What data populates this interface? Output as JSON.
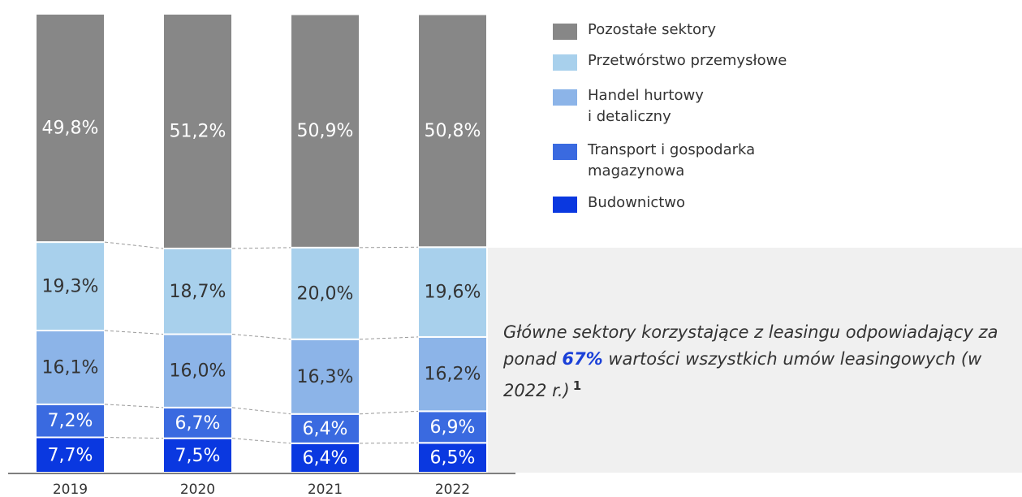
{
  "chart_data": {
    "type": "stacked_bar",
    "categories": [
      "2019",
      "2020",
      "2021",
      "2022"
    ],
    "series": [
      {
        "name": "Budownictwo",
        "color": "#0a38e0",
        "values": [
          7.7,
          7.5,
          6.4,
          6.5
        ],
        "value_labels": [
          "7,7%",
          "7,5%",
          "6,4%",
          "6,5%"
        ]
      },
      {
        "name": "Transport i gospodarka\nmagazynowa",
        "color": "#3a6ae0",
        "values": [
          7.2,
          6.7,
          6.4,
          6.9
        ],
        "value_labels": [
          "7,2%",
          "6,7%",
          "6,4%",
          "6,9%"
        ]
      },
      {
        "name": "Handel hurtowy\ni detaliczny",
        "color": "#8cb4e8",
        "values": [
          16.1,
          16.0,
          16.3,
          16.2
        ],
        "value_labels": [
          "16,1%",
          "16,0%",
          "16,3%",
          "16,2%"
        ]
      },
      {
        "name": "Przetwórstwo przemysłowe",
        "color": "#a8d0ec",
        "values": [
          19.3,
          18.7,
          20.0,
          19.6
        ],
        "value_labels": [
          "19,3%",
          "18,7%",
          "20,0%",
          "19,6%"
        ]
      },
      {
        "name": "Pozostałe sektory",
        "color": "#878787",
        "values": [
          49.8,
          51.2,
          50.9,
          50.8
        ],
        "value_labels": [
          "49,8%",
          "51,2%",
          "50,9%",
          "50,8%"
        ]
      }
    ],
    "annotation": {
      "before": "Główne sektory korzystające z leasingu odpowiadający za ponad ",
      "highlight": "67%",
      "after": " wartości wszystkich umów leasingowych (w 2022 r.)",
      "footnote": "1"
    }
  }
}
